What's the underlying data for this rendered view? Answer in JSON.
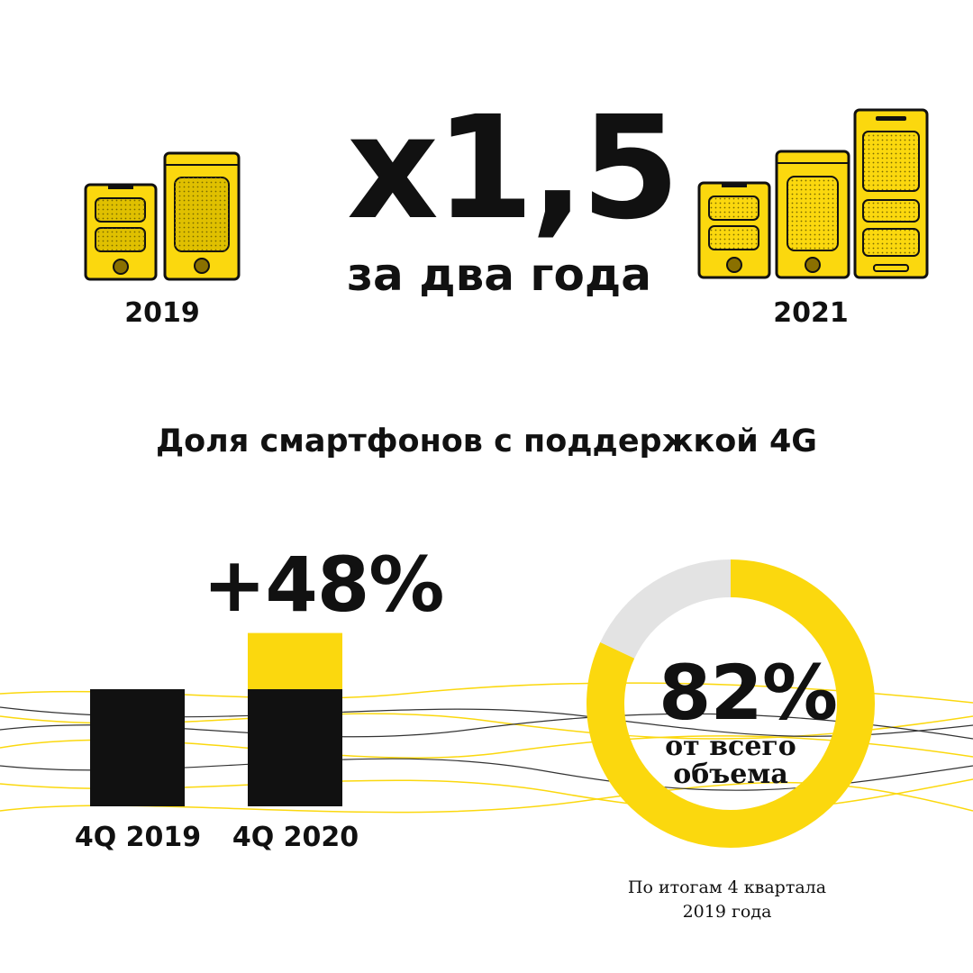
{
  "header": {
    "multiplier": "x1,5",
    "subtitle": "за два года",
    "year_left": "2019",
    "year_right": "2021"
  },
  "colors": {
    "accent": "#FBD80E",
    "dark": "#111111",
    "grey": "#E3E3E3",
    "background": "#FFFFFF"
  },
  "icons": [
    "smartphone-icon"
  ],
  "section_title": "Доля смартфонов с поддержкой 4G",
  "chart_data": [
    {
      "type": "bar",
      "categories": [
        "4Q 2019",
        "4Q 2020"
      ],
      "series": [
        {
          "values": [
            100,
            100
          ]
        },
        {
          "values": [
            0,
            48
          ]
        }
      ],
      "stacked": true,
      "annotation": "+48%",
      "title": "",
      "xlabel": "",
      "ylabel": ""
    },
    {
      "type": "pie",
      "donut": true,
      "values": [
        82,
        18
      ],
      "labels": [
        "82%",
        ""
      ],
      "center_label": "82%",
      "center_sublabel": "от всего объема",
      "footnote": "По итогам 4 квартала 2019 года"
    }
  ],
  "donut_text": {
    "sub_line1": "от всего",
    "sub_line2": "объема",
    "footnote_line1": "По итогам 4 квартала",
    "footnote_line2": "2019 года"
  }
}
